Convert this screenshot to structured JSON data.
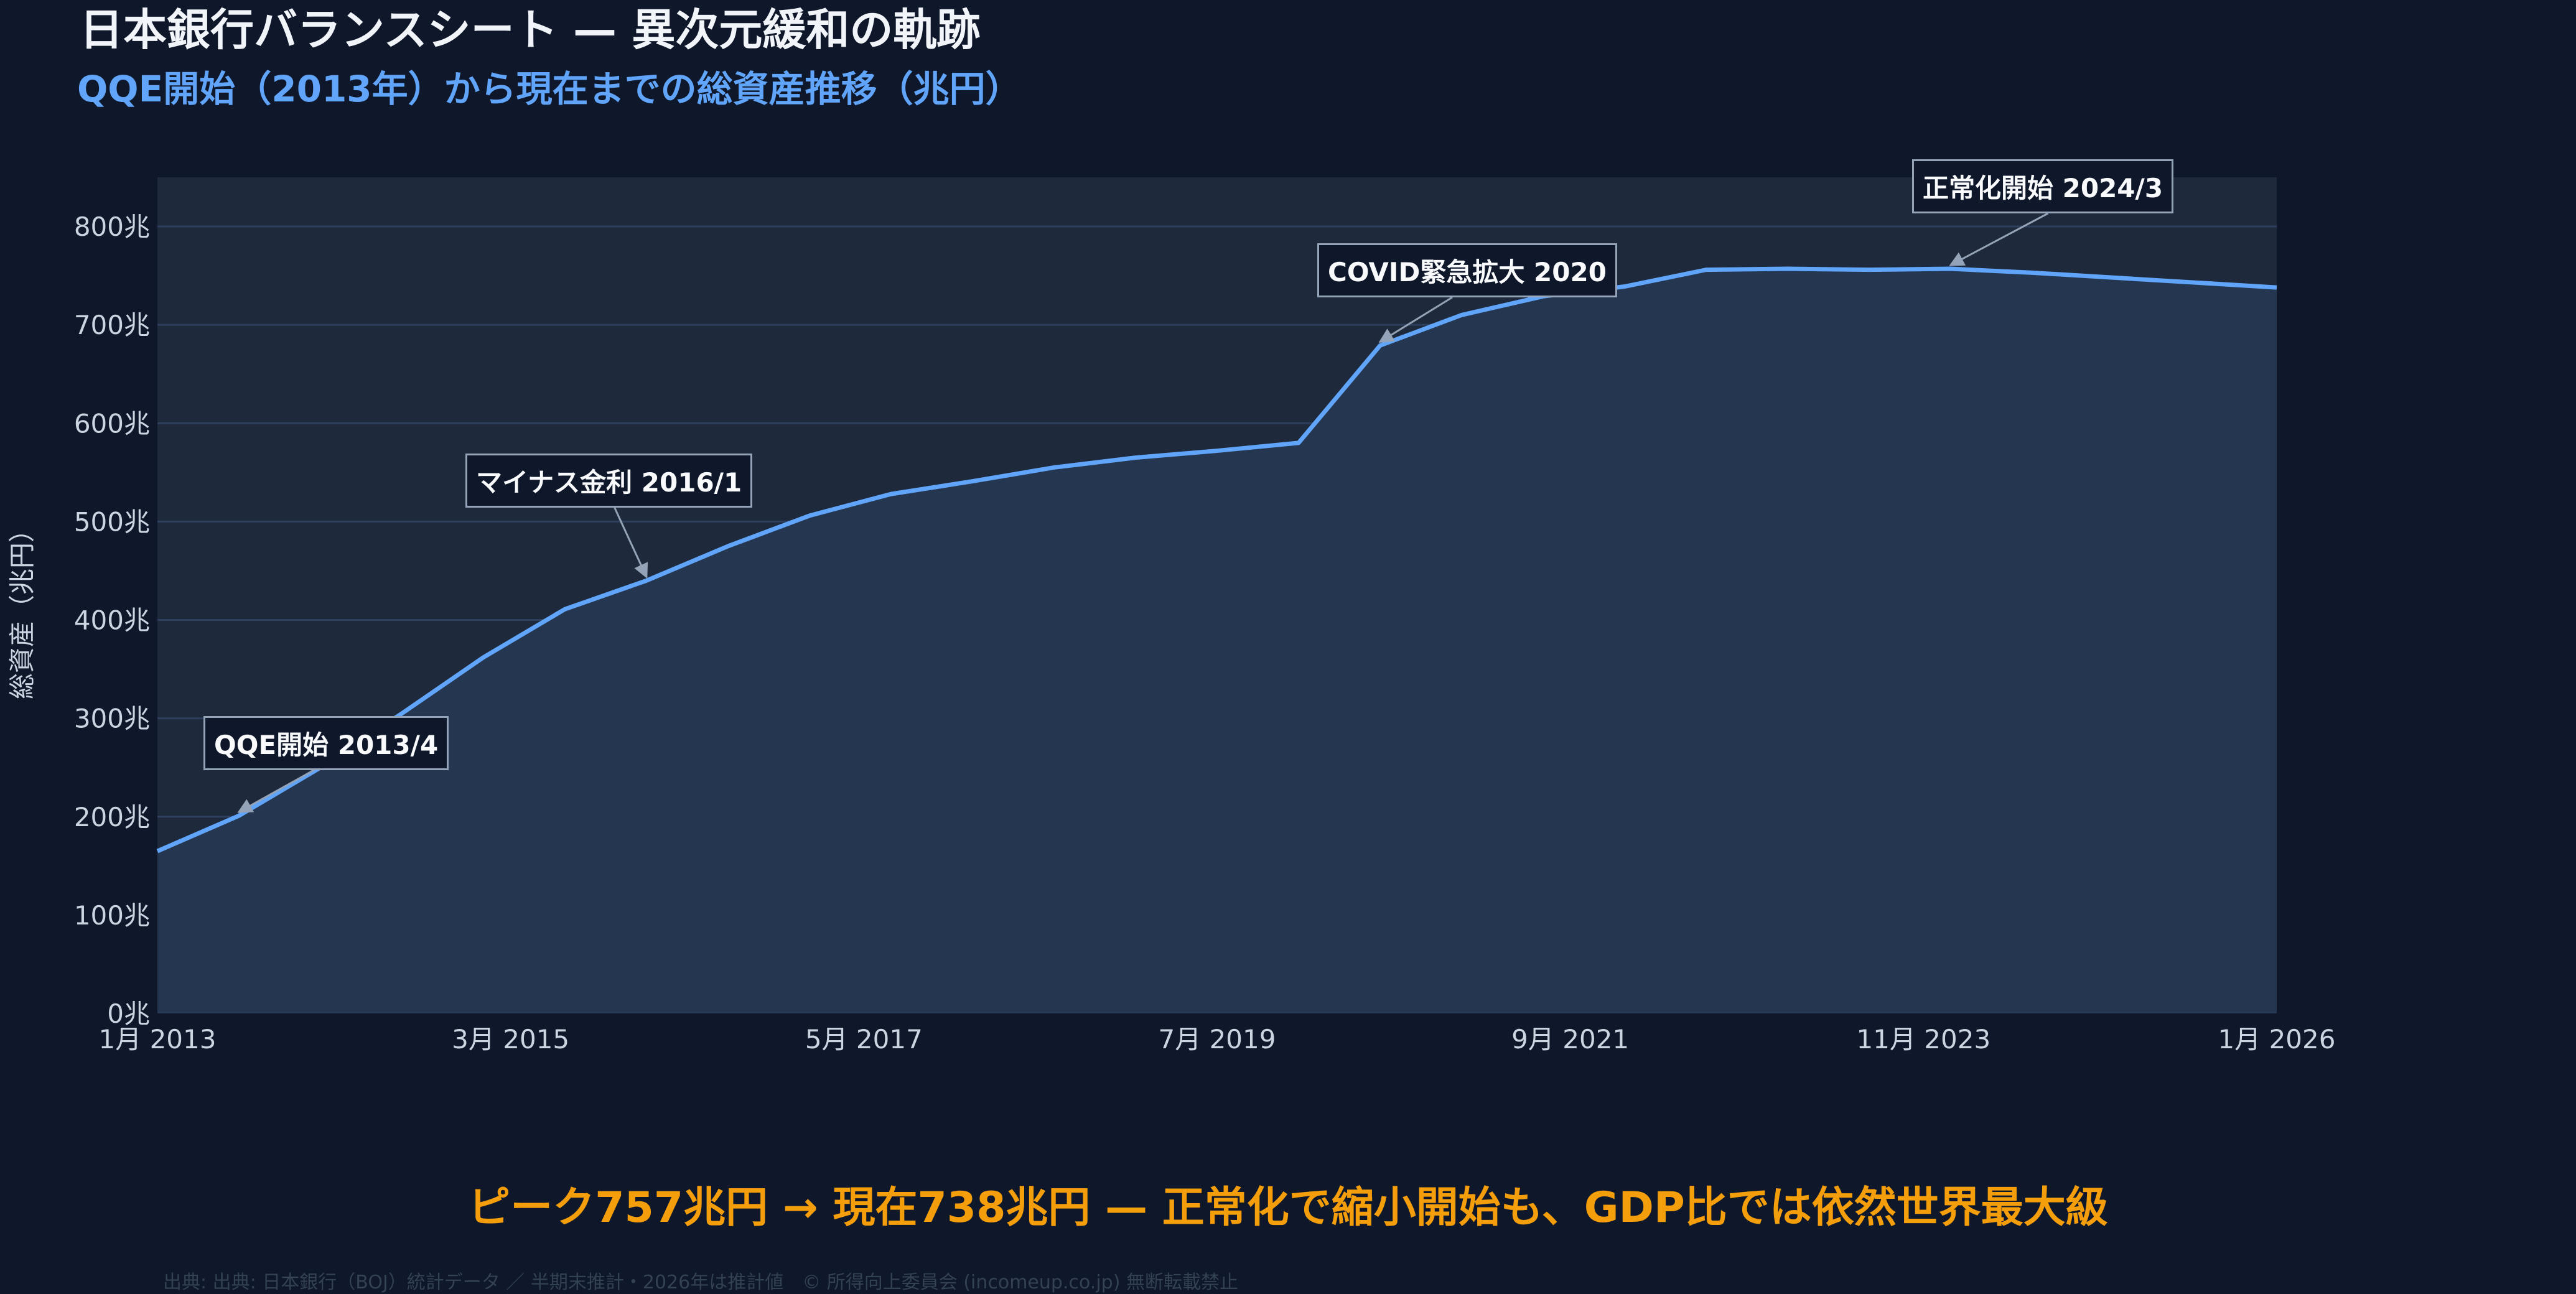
{
  "header": {
    "title": "日本銀行バランスシート — 異次元緩和の軌跡",
    "subtitle": "QQE開始（2013年）から現在までの総資産推移（兆円）"
  },
  "chart_data": {
    "type": "area",
    "title": "",
    "xlabel": "",
    "ylabel": "総資産（兆円）",
    "ylim": [
      0,
      850
    ],
    "xlim": [
      "2013-01",
      "2026-01"
    ],
    "grid": true,
    "y_ticks": [
      0,
      100,
      200,
      300,
      400,
      500,
      600,
      700,
      800
    ],
    "y_tick_labels": [
      "0兆",
      "100兆",
      "200兆",
      "300兆",
      "400兆",
      "500兆",
      "600兆",
      "700兆",
      "800兆"
    ],
    "x_ticks": [
      "2013-01",
      "2015-03",
      "2017-05",
      "2019-07",
      "2021-09",
      "2023-11",
      "2026-01"
    ],
    "x_tick_labels": [
      "1月 2013",
      "3月 2015",
      "5月 2017",
      "7月 2019",
      "9月 2021",
      "11月 2023",
      "1月 2026"
    ],
    "series": [
      {
        "color": "#60a5fa",
        "x": [
          "2013-01",
          "2013-07",
          "2014-01",
          "2014-07",
          "2015-01",
          "2015-07",
          "2016-01",
          "2016-07",
          "2017-01",
          "2017-07",
          "2018-01",
          "2018-07",
          "2019-01",
          "2019-07",
          "2020-01",
          "2020-07",
          "2021-01",
          "2021-07",
          "2022-01",
          "2022-07",
          "2023-01",
          "2023-07",
          "2024-01",
          "2024-07",
          "2025-01",
          "2025-07",
          "2026-01"
        ],
        "y": [
          165,
          201,
          250,
          305,
          362,
          411,
          440,
          475,
          506,
          528,
          541,
          555,
          565,
          572,
          580,
          679,
          710,
          729,
          739,
          756,
          757,
          756,
          757,
          753,
          748,
          743,
          738
        ]
      }
    ],
    "annotations": [
      {
        "text": "QQE開始 2013/4",
        "x": "2013-07",
        "y": 201
      },
      {
        "text": "マイナス金利 2016/1",
        "x": "2016-01",
        "y": 440
      },
      {
        "text": "COVID緊急拡大 2020",
        "x": "2020-07",
        "y": 679
      },
      {
        "text": "正常化開始 2024/3",
        "x": "2024-01",
        "y": 757
      }
    ],
    "colors": {
      "background": "#0f172a",
      "plot_background": "#1e293b",
      "area_fill": "#253650",
      "line": "#60a5fa",
      "grid": "#2d3f5c"
    }
  },
  "headline": "ピーク757兆円 → 現在738兆円 — 正常化で縮小開始も、GDP比では依然世界最大級",
  "footer": "出典: 出典: 日本銀行（BOJ）統計データ ／ 半期末推計・2026年は推計値　© 所得向上委員会 (incomeup.co.jp) 無断転載禁止"
}
